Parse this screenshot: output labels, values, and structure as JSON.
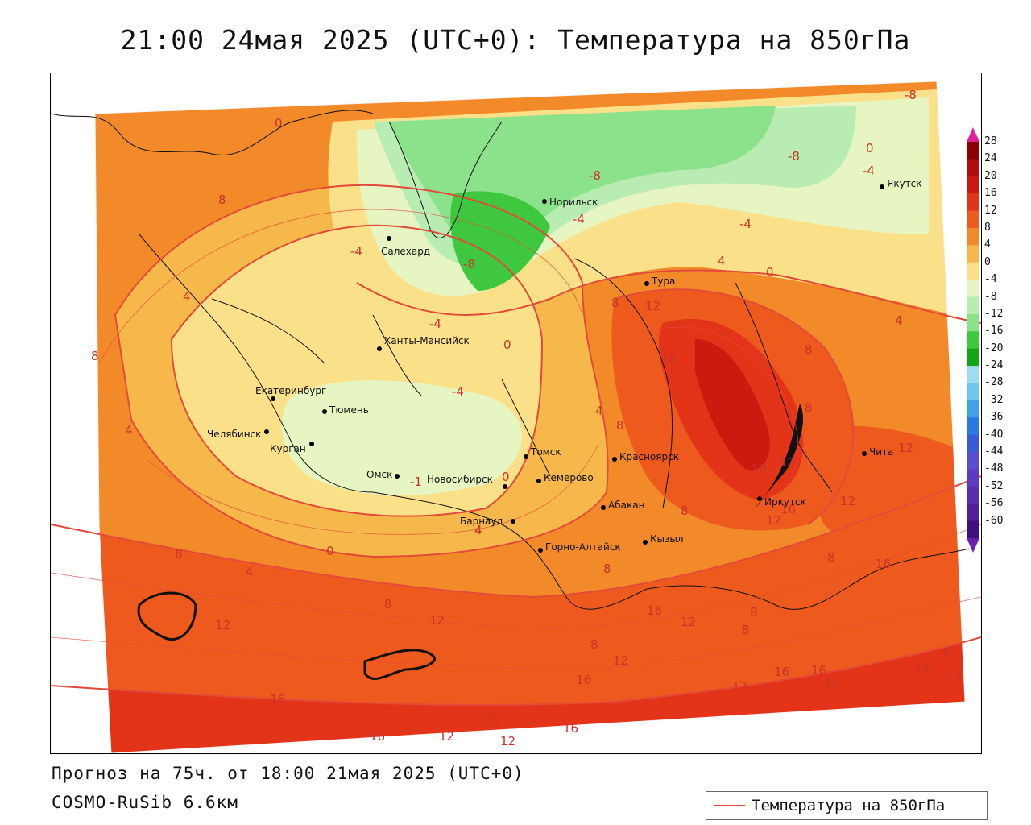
{
  "title": "21:00 24мая 2025 (UTC+0): Температура на 850гПа",
  "footer": {
    "forecast": "Прогноз на 75ч. от 18:00 21мая 2025 (UTC+0)",
    "model": "COSMO-RuSib 6.6км"
  },
  "legend": {
    "label": "Температура на 850гПа",
    "line_color": "#e24a3a"
  },
  "colorbar": {
    "labels": [
      "28",
      "24",
      "20",
      "16",
      "12",
      "8",
      "4",
      "0",
      "-4",
      "-8",
      "-12",
      "-16",
      "-20",
      "-24",
      "-28",
      "-32",
      "-36",
      "-40",
      "-44",
      "-48",
      "-52",
      "-56",
      "-60"
    ],
    "colors": [
      "#8b0000",
      "#b30d0d",
      "#cc1a10",
      "#e3341a",
      "#ee5a1e",
      "#f28a2a",
      "#f6b84a",
      "#fbe08a",
      "#e6f5c2",
      "#b8ecb2",
      "#8be28a",
      "#3fc83f",
      "#14a514",
      "#9fdcef",
      "#6fc7ee",
      "#3fa2e8",
      "#2a78e0",
      "#3a5bd8",
      "#5a4fd2",
      "#5a3bc2",
      "#5a2db0",
      "#4f1f9a",
      "#3d1082"
    ]
  },
  "cities": [
    {
      "name": "Норильск"
    },
    {
      "name": "Салехард"
    },
    {
      "name": "Якутск"
    },
    {
      "name": "Тура"
    },
    {
      "name": "Ханты-Мансийск"
    },
    {
      "name": "Екатеринбург"
    },
    {
      "name": "Тюмень"
    },
    {
      "name": "Челябинск"
    },
    {
      "name": "Курган"
    },
    {
      "name": "Омск"
    },
    {
      "name": "Новосибирск"
    },
    {
      "name": "Томск"
    },
    {
      "name": "Кемерово"
    },
    {
      "name": "Красноярск"
    },
    {
      "name": "Барнаул"
    },
    {
      "name": "Абакан"
    },
    {
      "name": "Горно-Алтайск"
    },
    {
      "name": "Кызыл"
    },
    {
      "name": "Иркутск"
    },
    {
      "name": "Чита"
    }
  ],
  "contour_labels": [
    "0",
    "-8",
    "-4",
    "-8",
    "-4",
    "-4",
    "-8",
    "8",
    "-4",
    "-8",
    "-4",
    "0",
    "4",
    "0",
    "4",
    "4",
    "8",
    "12",
    "16",
    "8",
    "4",
    "8",
    "16",
    "12",
    "8",
    "12",
    "16",
    "12",
    "8",
    "8",
    "16",
    "8",
    "12",
    "4",
    "0",
    "8",
    "4",
    "8",
    "12",
    "12",
    "16",
    "12",
    "8",
    "8",
    "8",
    "12",
    "16",
    "16",
    "12",
    "16",
    "16",
    "12",
    "16",
    "12",
    "12",
    "16",
    "12",
    "16",
    "8",
    "12",
    "4",
    "0",
    "4",
    "8",
    "-4",
    "-1",
    "0"
  ]
}
